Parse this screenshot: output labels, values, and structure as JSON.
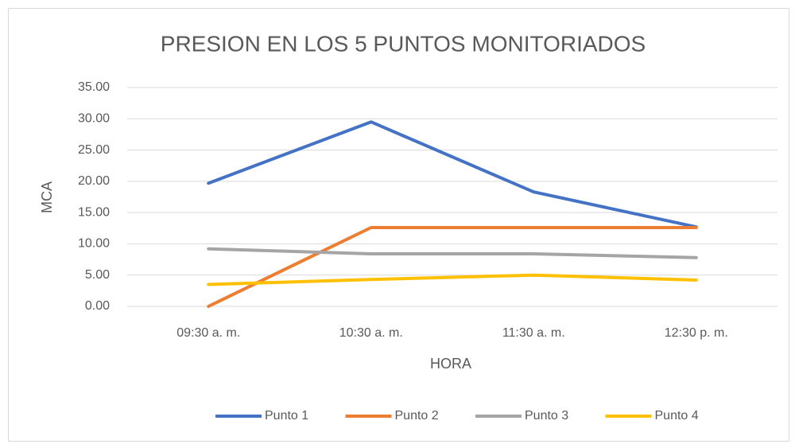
{
  "chart_data": {
    "type": "line",
    "title": "PRESION EN LOS 5 PUNTOS MONITORIADOS",
    "x_label": "HORA",
    "y_label": "MCA",
    "categories": [
      "09:30 a. m.",
      "10:30 a. m.",
      "11:30 a. m.",
      "12:30 p. m."
    ],
    "series": [
      {
        "name": "Punto 1",
        "color": "#4472c4",
        "values": [
          19.7,
          29.5,
          18.3,
          12.7
        ]
      },
      {
        "name": "Punto 2",
        "color": "#ed7d31",
        "values": [
          0,
          12.6,
          12.6,
          12.6
        ]
      },
      {
        "name": "Punto 3",
        "color": "#a5a5a5",
        "values": [
          9.2,
          8.4,
          8.4,
          7.8
        ]
      },
      {
        "name": "Punto 4",
        "color": "#ffc000",
        "values": [
          3.5,
          4.3,
          5.0,
          4.2
        ]
      }
    ],
    "ylim": [
      0,
      35
    ],
    "yticks": [
      {
        "value": 0,
        "label": "0.00"
      },
      {
        "value": 5,
        "label": "5.00"
      },
      {
        "value": 10,
        "label": "10.00"
      },
      {
        "value": 15,
        "label": "15.00"
      },
      {
        "value": 20,
        "label": "20.00"
      },
      {
        "value": 25,
        "label": "25.00"
      },
      {
        "value": 30,
        "label": "30.00"
      },
      {
        "value": 35,
        "label": "35.00"
      }
    ],
    "grid": true,
    "legend": "bottom"
  }
}
